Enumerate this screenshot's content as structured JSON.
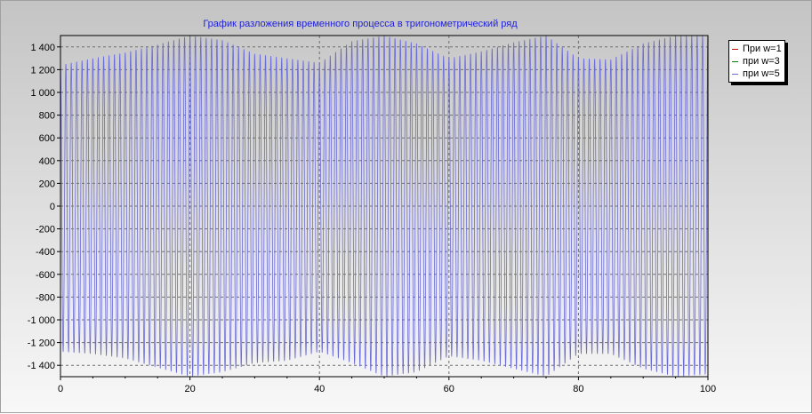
{
  "chart_data": {
    "type": "line",
    "title": "График разложения временного процесса в тригонометрический ряд",
    "xlabel": "",
    "ylabel": "",
    "xlim": [
      0,
      100
    ],
    "ylim": [
      -1500,
      1500
    ],
    "x_ticks": [
      0,
      20,
      40,
      60,
      80,
      100
    ],
    "x_tick_labels": [
      "0",
      "20",
      "40",
      "60",
      "80",
      "100"
    ],
    "y_ticks": [
      1400,
      1200,
      1000,
      800,
      600,
      400,
      200,
      0,
      -200,
      -400,
      -600,
      -800,
      -1000,
      -1200,
      -1400
    ],
    "y_tick_labels": [
      "1 400",
      "1 200",
      "1 000",
      "800",
      "600",
      "400",
      "200",
      "0",
      "-200",
      "-400",
      "-600",
      "-800",
      "-1 000",
      "-1 200",
      "-1 400"
    ],
    "grid": true,
    "legend_position": "right",
    "series": [
      {
        "name": "При w=1",
        "color": "#cc0000"
      },
      {
        "name": "при w=3",
        "color": "#008000"
      },
      {
        "name": "при w=5",
        "color": "#6b6bd8"
      }
    ],
    "signal": {
      "series": "при w=5",
      "x": [
        0,
        5,
        10,
        15,
        20,
        25,
        30,
        35,
        40,
        45,
        50,
        55,
        60,
        65,
        70,
        75,
        80,
        85,
        90,
        95,
        100
      ],
      "upper": [
        1240,
        1300,
        1350,
        1420,
        1500,
        1460,
        1340,
        1300,
        1260,
        1450,
        1500,
        1430,
        1300,
        1360,
        1440,
        1500,
        1300,
        1290,
        1430,
        1500,
        1500
      ],
      "lower": [
        -1280,
        -1300,
        -1340,
        -1420,
        -1500,
        -1460,
        -1380,
        -1360,
        -1280,
        -1380,
        -1500,
        -1460,
        -1320,
        -1360,
        -1430,
        -1500,
        -1300,
        -1300,
        -1430,
        -1500,
        -1480
      ],
      "cycles": 120
    }
  }
}
